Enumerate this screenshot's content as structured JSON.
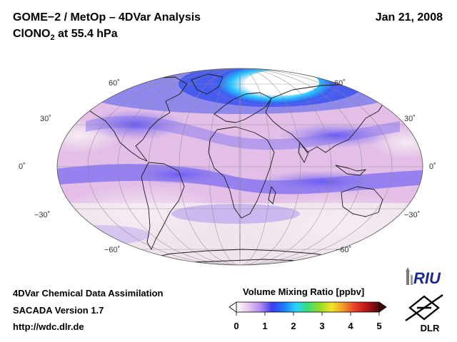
{
  "header": {
    "title": "GOME−2 / MetOp – 4DVar Analysis",
    "species_prefix": "ClONO",
    "species_subscript": "2",
    "species_suffix": " at 55.4 hPa",
    "date": "Jan 21, 2008"
  },
  "footer": {
    "line1": "4DVar Chemical Data Assimilation",
    "line2": "SACADA Version 1.7",
    "line3": "http://wdc.dlr.de"
  },
  "latitude_labels": {
    "n60": "60˚",
    "n30": "30˚",
    "eq": "0˚",
    "s30": "−30˚",
    "s60": "−60˚"
  },
  "colorbar": {
    "title": "Volume Mixing Ratio [ppbv]",
    "ticks": [
      "0",
      "1",
      "2",
      "3",
      "4",
      "5"
    ],
    "min": 0,
    "max": 5,
    "colors": [
      "#ffffff",
      "#e6c9ee",
      "#b48ef0",
      "#3c3cf0",
      "#1e7cff",
      "#28d2ff",
      "#3cdc78",
      "#96dc28",
      "#f0e628",
      "#f09628",
      "#e63c28",
      "#b41414",
      "#500a0a"
    ]
  },
  "logos": {
    "riu": "RIU",
    "dlr": "DLR"
  },
  "map": {
    "projection": "Mollweide",
    "colors": {
      "ocean_bg": "#e3bfe7",
      "low": "#f2e6ef",
      "mid": "#9c86ee",
      "high": "#5454ec",
      "polar": "#28c4ff",
      "vortex": "#ffffff"
    }
  }
}
